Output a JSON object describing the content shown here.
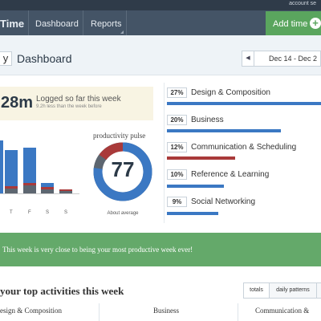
{
  "app": {
    "logo": "Time",
    "account_text": "account se"
  },
  "nav": {
    "items": [
      {
        "label": "Dashboard"
      },
      {
        "label": "Reports"
      }
    ],
    "add_time_label": "Add time"
  },
  "subheader": {
    "view_letter": "y",
    "title": "Dashboard",
    "date_range": "Dec 14 - Dec 2"
  },
  "summary": {
    "hours": "28m",
    "headline": "Logged so far this week",
    "comparison": "9.2h less than the week before"
  },
  "week_chart": {
    "days": [
      "T",
      "F",
      "S",
      "S"
    ],
    "colors": {
      "productive": "#3b78c3",
      "unproductive": "#a93a3a",
      "neutral": "#5d6670"
    }
  },
  "pulse": {
    "title": "productivity pulse",
    "score": "77",
    "caption": "About average",
    "ring_fraction": 0.77
  },
  "activities": [
    {
      "pct": "27%",
      "name": "Design & Composition",
      "share": 27,
      "color": "#3b78c3"
    },
    {
      "pct": "20%",
      "name": "Business",
      "share": 20,
      "color": "#3b78c3"
    },
    {
      "pct": "12%",
      "name": "Communication & Scheduling",
      "share": 12,
      "color": "#a93a3a"
    },
    {
      "pct": "10%",
      "name": "Reference & Learning",
      "share": 10,
      "color": "#3b78c3"
    },
    {
      "pct": "9%",
      "name": "Social Networking",
      "share": 9,
      "color": "#3b78c3"
    }
  ],
  "banner": {
    "text": "This week is very close to being your most productive week ever!"
  },
  "top_activities": {
    "title": "your top activities this week",
    "tabs": [
      {
        "label": "totals"
      },
      {
        "label": "daily patterns"
      }
    ],
    "columns": [
      {
        "label": "esign & Composition"
      },
      {
        "label": "Business"
      },
      {
        "label": "Communication &"
      }
    ]
  }
}
